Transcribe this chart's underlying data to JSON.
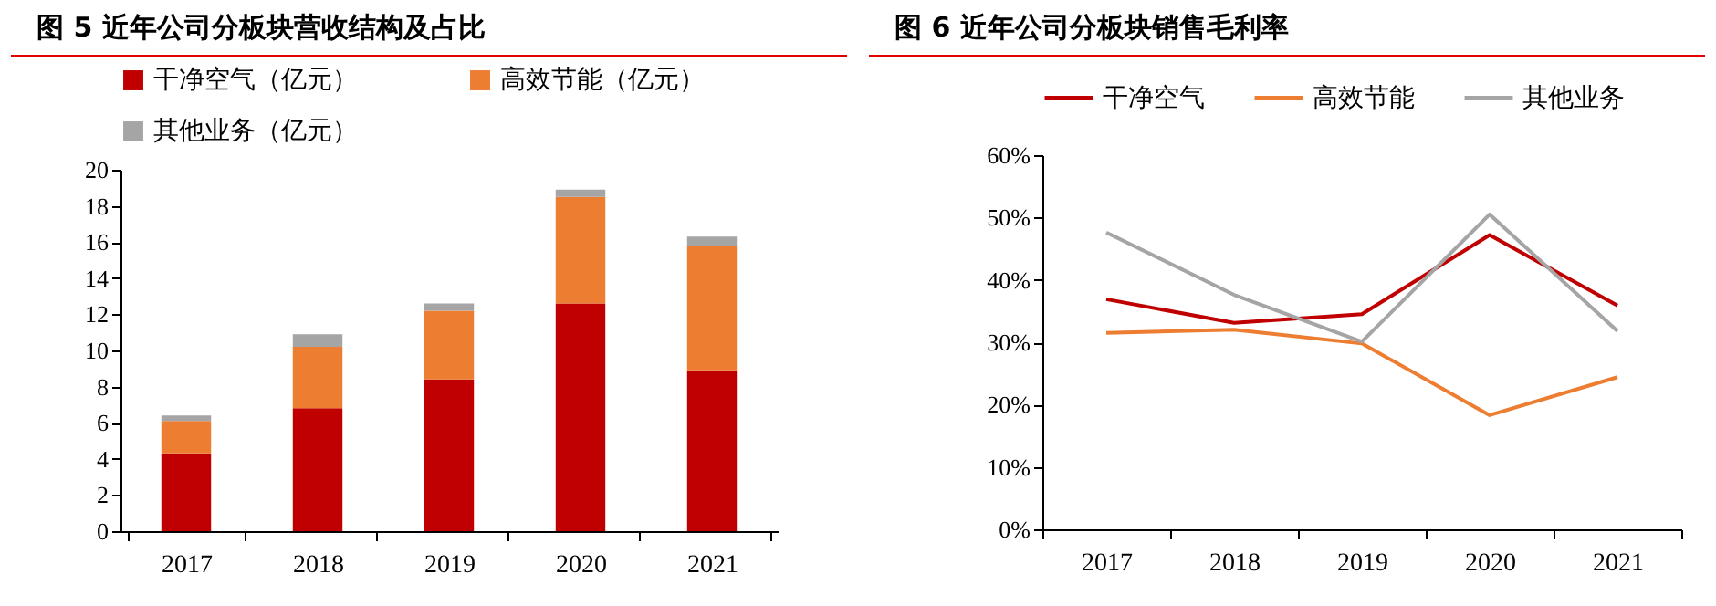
{
  "chart_data": [
    {
      "type": "bar",
      "title": "图 5 近年公司分板块营收结构及占比",
      "stacked": true,
      "categories": [
        "2017",
        "2018",
        "2019",
        "2020",
        "2021"
      ],
      "series": [
        {
          "name": "干净空气（亿元）",
          "color": "#c00000",
          "values": [
            4.3,
            6.8,
            8.4,
            12.6,
            8.9
          ]
        },
        {
          "name": "高效节能（亿元）",
          "color": "#ed7d31",
          "values": [
            1.8,
            3.4,
            3.8,
            5.9,
            6.9
          ]
        },
        {
          "name": "其他业务（亿元）",
          "color": "#a5a5a5",
          "values": [
            0.3,
            0.7,
            0.4,
            0.4,
            0.5
          ]
        }
      ],
      "ylim": [
        0,
        20
      ],
      "yticks": [
        0,
        2,
        4,
        6,
        8,
        10,
        12,
        14,
        16,
        18,
        20
      ],
      "grid": false,
      "legend": "top"
    },
    {
      "type": "line",
      "title": "图 6 近年公司分板块销售毛利率",
      "categories": [
        "2017",
        "2018",
        "2019",
        "2020",
        "2021"
      ],
      "series": [
        {
          "name": "干净空气",
          "color": "#c00000",
          "values": [
            36.9,
            33.1,
            34.5,
            47.2,
            35.9
          ]
        },
        {
          "name": "高效节能",
          "color": "#ed7d31",
          "values": [
            31.5,
            32.0,
            29.8,
            18.3,
            24.4
          ]
        },
        {
          "name": "其他业务",
          "color": "#a5a5a5",
          "values": [
            47.6,
            37.6,
            30.1,
            50.5,
            31.8
          ]
        }
      ],
      "ylim": [
        0,
        60
      ],
      "yticks": [
        {
          "value": 0,
          "label": "0%"
        },
        {
          "value": 10,
          "label": "10%"
        },
        {
          "value": 20,
          "label": "20%"
        },
        {
          "value": 30,
          "label": "30%"
        },
        {
          "value": 40,
          "label": "40%"
        },
        {
          "value": 50,
          "label": "50%"
        },
        {
          "value": 60,
          "label": "60%"
        }
      ],
      "grid": false,
      "legend": "top",
      "marker": "none",
      "line_style": "solid"
    }
  ]
}
